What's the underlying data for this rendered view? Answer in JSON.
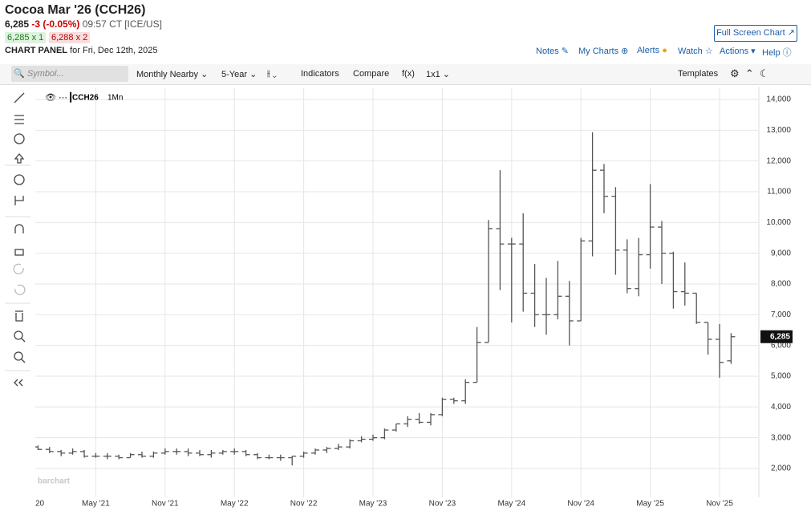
{
  "ui": {
    "title": "Cocoa Mar '26 (CCH26)",
    "last": "6,285",
    "change": "-3 (-0.05%)",
    "time": "09:57 CT [ICE/US]",
    "bid": "6,285 x 1",
    "ask": "6,288 x 2",
    "panel": "CHART PANEL",
    "panel_date": "for Fri, Dec 12th, 2025",
    "fullscreen": "Full Screen Chart",
    "links": [
      "Notes",
      "My Charts",
      "Alerts",
      "Watch",
      "Actions",
      "Help"
    ],
    "symbol": "Symbol...",
    "toolbar": [
      "Monthly Nearby",
      "5-Year",
      "Indicators",
      "Compare",
      "f(x)",
      "1x1"
    ],
    "templates": "Templates",
    "watermark": "barchart"
  },
  "chart_data": {
    "type": "ohlc",
    "legend": "CCH26",
    "legend_period": "1Mn",
    "color": "#555555",
    "categories": [
      "20",
      null,
      null,
      null,
      null,
      null,
      "May '21",
      null,
      null,
      null,
      null,
      null,
      "Nov '21",
      null,
      null,
      null,
      null,
      null,
      "May '22",
      null,
      null,
      null,
      null,
      null,
      "Nov '22",
      null,
      null,
      null,
      null,
      null,
      "May '23",
      null,
      null,
      null,
      null,
      null,
      "Nov '23",
      null,
      null,
      null,
      null,
      null,
      "May '24",
      null,
      null,
      null,
      null,
      null,
      "Nov '24",
      null,
      null,
      null,
      null,
      null,
      "May '25",
      null,
      null,
      null,
      null,
      null,
      "Nov '25",
      null
    ],
    "open": [
      null,
      2700,
      2620,
      2550,
      2500,
      2550,
      2400,
      2400,
      2400,
      2350,
      2450,
      2400,
      2500,
      2550,
      2550,
      2500,
      2450,
      2500,
      2550,
      2550,
      2450,
      2350,
      2350,
      2350,
      2400,
      2500,
      2600,
      2650,
      2700,
      2900,
      2950,
      3000,
      3250,
      3450,
      3600,
      3500,
      3750,
      4250,
      4200,
      4800,
      6100,
      9800,
      9300,
      9300,
      7700,
      7000,
      7000,
      7600,
      6800,
      9400,
      11700,
      10850,
      9100,
      7850,
      8950,
      9850,
      9000,
      7750,
      7700,
      6750,
      6200,
      5500
    ],
    "high": [
      null,
      2750,
      2700,
      2600,
      2650,
      2600,
      2500,
      2500,
      2450,
      2500,
      2550,
      2550,
      2650,
      2650,
      2650,
      2600,
      2600,
      2600,
      2650,
      2600,
      2500,
      2450,
      2450,
      2400,
      2550,
      2650,
      2700,
      2800,
      2950,
      3050,
      3100,
      3300,
      3450,
      3700,
      3800,
      3800,
      4300,
      4300,
      4900,
      6600,
      10080,
      11700,
      9500,
      10300,
      8650,
      8200,
      8750,
      8100,
      9500,
      12931,
      11900,
      11150,
      9450,
      9500,
      11250,
      10050,
      9050,
      8700,
      7700,
      6750,
      6700,
      6400
    ],
    "low": [
      null,
      2600,
      2500,
      2400,
      2450,
      2350,
      2350,
      2300,
      2300,
      2350,
      2350,
      2350,
      2450,
      2450,
      2400,
      2400,
      2350,
      2450,
      2450,
      2400,
      2300,
      2300,
      2250,
      2100,
      2350,
      2450,
      2500,
      2600,
      2650,
      2850,
      2900,
      2950,
      3200,
      3350,
      3450,
      3400,
      3700,
      4100,
      4100,
      4800,
      6100,
      7800,
      6750,
      7100,
      6600,
      6350,
      6850,
      6000,
      6800,
      8900,
      10300,
      8300,
      7700,
      7600,
      8500,
      8000,
      7200,
      7300,
      6700,
      5700,
      4950,
      5400
    ],
    "close": [
      null,
      2620,
      2550,
      2500,
      2550,
      2400,
      2400,
      2400,
      2350,
      2450,
      2400,
      2500,
      2550,
      2550,
      2500,
      2450,
      2500,
      2550,
      2550,
      2450,
      2350,
      2350,
      2350,
      2400,
      2500,
      2600,
      2650,
      2700,
      2900,
      2950,
      3000,
      3250,
      3450,
      3600,
      3500,
      3750,
      4250,
      4200,
      4800,
      6100,
      9800,
      9300,
      9300,
      7700,
      7000,
      7000,
      7600,
      6800,
      9400,
      11700,
      10850,
      9100,
      7850,
      8950,
      9850,
      9000,
      7750,
      7700,
      6750,
      6200,
      5450,
      6285
    ],
    "last_label": {
      "value": 6285,
      "label": "6,285"
    },
    "ylim": [
      1060,
      14365
    ],
    "yticks": [
      {
        "value": 2000,
        "label": "2,000"
      },
      {
        "value": 3000,
        "label": "3,000"
      },
      {
        "value": 4000,
        "label": "4,000"
      },
      {
        "value": 5000,
        "label": "5,000"
      },
      {
        "value": 6000,
        "label": "6,000"
      },
      {
        "value": 7000,
        "label": "7,000"
      },
      {
        "value": 8000,
        "label": "8,000"
      },
      {
        "value": 9000,
        "label": "9,000"
      },
      {
        "value": 10000,
        "label": "10,000"
      },
      {
        "value": 11000,
        "label": "11,000"
      },
      {
        "value": 12000,
        "label": "12,000"
      },
      {
        "value": 13000,
        "label": "13,000"
      },
      {
        "value": 14000,
        "label": "14,000"
      }
    ],
    "grid": true
  }
}
